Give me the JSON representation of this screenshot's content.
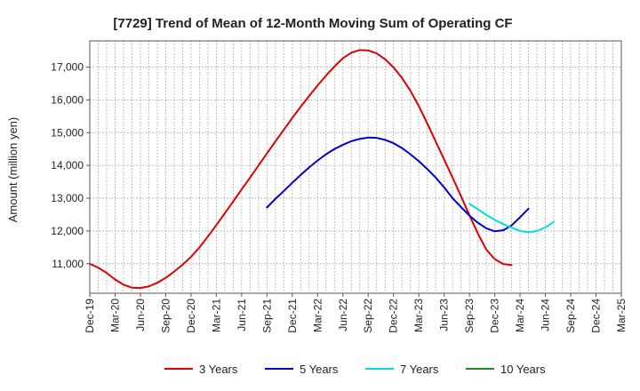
{
  "chart_data": {
    "type": "line",
    "title": "[7729]  Trend of Mean of 12-Month Moving Sum of Operating CF",
    "xlabel": "",
    "ylabel": "Amount (million yen)",
    "x_ticks": [
      "Dec-19",
      "Mar-20",
      "Jun-20",
      "Sep-20",
      "Dec-20",
      "Mar-21",
      "Jun-21",
      "Sep-21",
      "Dec-21",
      "Mar-22",
      "Jun-22",
      "Sep-22",
      "Dec-22",
      "Mar-23",
      "Jun-23",
      "Sep-23",
      "Dec-23",
      "Mar-24",
      "Jun-24",
      "Sep-24",
      "Dec-24",
      "Mar-25"
    ],
    "y_ticks": [
      11000,
      12000,
      13000,
      14000,
      15000,
      16000,
      17000
    ],
    "y_tick_labels": [
      "11,000",
      "12,000",
      "13,000",
      "14,000",
      "15,000",
      "16,000",
      "17,000"
    ],
    "ylim": [
      10100,
      17800
    ],
    "grid": true,
    "legend_position": "bottom",
    "series": [
      {
        "name": "3 Years",
        "color": "#e00000",
        "start_index": 0,
        "values": [
          11000,
          10880,
          10720,
          10520,
          10360,
          10270,
          10260,
          10310,
          10420,
          10570,
          10760,
          10970,
          11210,
          11500,
          11830,
          12180,
          12540,
          12900,
          13270,
          13630,
          14000,
          14370,
          14730,
          15090,
          15450,
          15790,
          16120,
          16440,
          16740,
          17020,
          17270,
          17440,
          17520,
          17510,
          17420,
          17240,
          16990,
          16670,
          16280,
          15810,
          15280,
          14730,
          14180,
          13630,
          13060,
          12480,
          11920,
          11430,
          11140,
          10990,
          10960
        ]
      },
      {
        "name": "5 Years",
        "color": "#0000cc",
        "start_index": 21,
        "values": [
          12720,
          12980,
          13220,
          13470,
          13710,
          13940,
          14150,
          14340,
          14500,
          14630,
          14740,
          14810,
          14850,
          14840,
          14780,
          14680,
          14530,
          14340,
          14130,
          13890,
          13630,
          13330,
          13000,
          12730,
          12470,
          12250,
          12080,
          11990,
          12020,
          12170,
          12420,
          12680
        ]
      },
      {
        "name": "7 Years",
        "color": "#00dddd",
        "start_index": 45,
        "values": [
          12830,
          12660,
          12490,
          12340,
          12210,
          12100,
          12000,
          11960,
          12000,
          12110,
          12280
        ]
      },
      {
        "name": "10 Years",
        "color": "#228822",
        "start_index": 45,
        "values": []
      }
    ]
  }
}
